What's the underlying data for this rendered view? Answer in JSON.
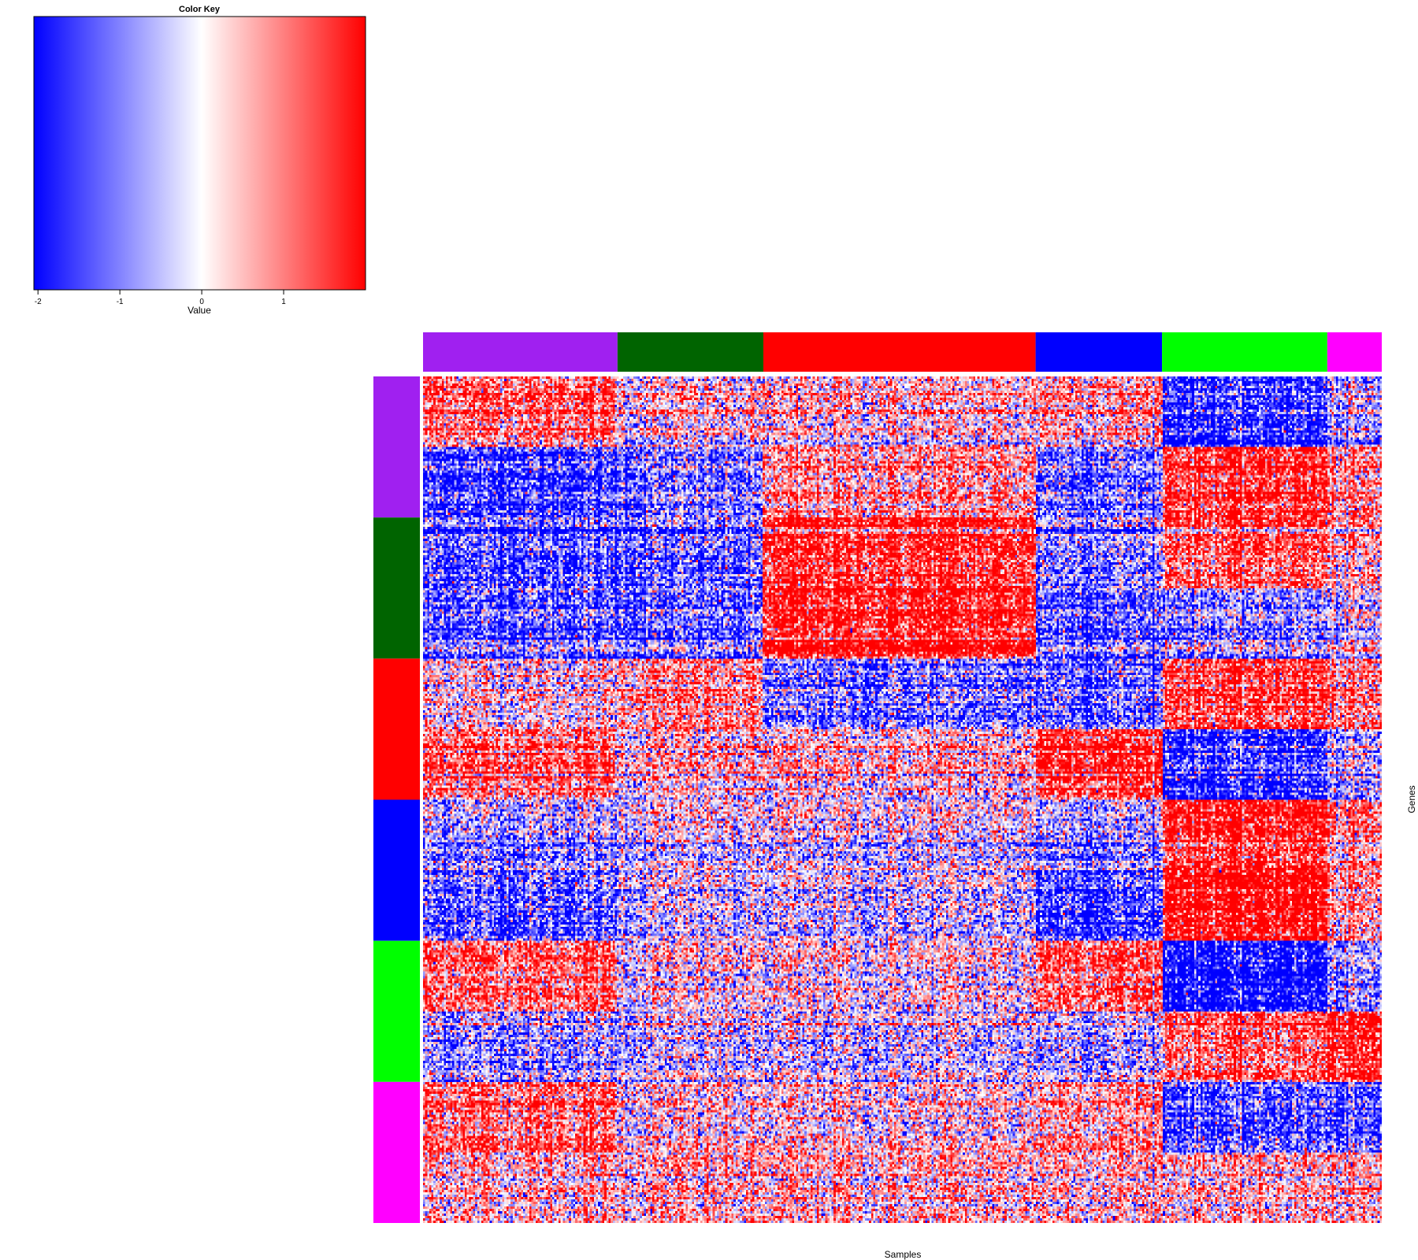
{
  "chart_data": {
    "type": "heatmap",
    "xlabel": "Samples",
    "ylabel": "Genes",
    "color_key": {
      "title": "Color Key",
      "label": "Value",
      "ticks": [
        -2,
        -1,
        0,
        1
      ],
      "tick_labels": [
        "-2",
        "-1",
        "0",
        "1"
      ],
      "range": [
        -2.05,
        2.0
      ],
      "colors": {
        "low": "#0000ff",
        "mid": "#ffffff",
        "high": "#ff0000"
      }
    },
    "column_groups": [
      {
        "color": "#a020f0",
        "n": 1.0
      },
      {
        "color": "#006400",
        "n": 0.75
      },
      {
        "color": "#ff0000",
        "n": 1.4
      },
      {
        "color": "#0000ff",
        "n": 0.65
      },
      {
        "color": "#00ff00",
        "n": 0.85
      },
      {
        "color": "#ff00ff",
        "n": 0.28
      }
    ],
    "row_groups": [
      {
        "color": "#a020f0",
        "n": 1
      },
      {
        "color": "#006400",
        "n": 1
      },
      {
        "color": "#ff0000",
        "n": 1
      },
      {
        "color": "#0000ff",
        "n": 1
      },
      {
        "color": "#00ff00",
        "n": 1
      },
      {
        "color": "#ff00ff",
        "n": 1
      }
    ],
    "row_block_means": [
      [
        1.0,
        0.2,
        0.3,
        0.6,
        -1.3,
        -0.4
      ],
      [
        -1.2,
        -0.8,
        0.6,
        -0.8,
        1.4,
        0.6
      ],
      [
        -1.1,
        -1.0,
        1.3,
        -0.7,
        1.0,
        0.3
      ],
      [
        -0.9,
        -0.9,
        1.6,
        -0.9,
        -0.6,
        -0.2
      ],
      [
        0.1,
        0.6,
        -0.9,
        -0.9,
        1.2,
        0.6
      ],
      [
        0.9,
        0.2,
        0.2,
        1.4,
        -1.4,
        -0.5
      ],
      [
        -0.6,
        -0.2,
        -0.2,
        -0.6,
        1.4,
        0.5
      ],
      [
        -1.0,
        -0.3,
        -0.3,
        -1.2,
        1.8,
        0.4
      ],
      [
        1.0,
        0.1,
        0.1,
        1.1,
        -1.7,
        -0.6
      ],
      [
        -0.6,
        -0.3,
        -0.3,
        -0.4,
        0.9,
        1.4
      ],
      [
        0.8,
        0.0,
        0.0,
        0.5,
        -1.2,
        -1.3
      ],
      [
        0.3,
        0.3,
        0.3,
        0.3,
        0.3,
        0.3
      ]
    ]
  }
}
